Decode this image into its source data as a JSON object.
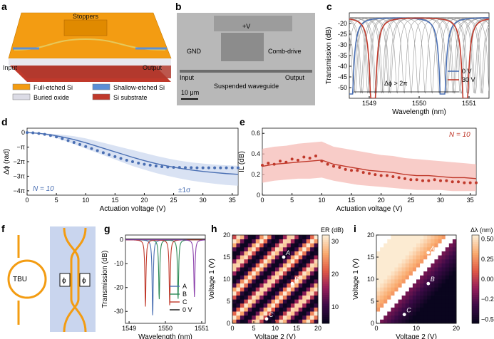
{
  "colors": {
    "blue": "#4a6fb3",
    "red": "#c0392b",
    "red_band": "#f5b7b1",
    "blue_band": "#c9d5ee",
    "orange": "#f39c12",
    "gray": "#9a9a9a",
    "green": "#2e8b57",
    "purple": "#8e44ad"
  },
  "panel_a": {
    "letter": "a",
    "device_labels": {
      "stoppers": "Stoppers",
      "input": "Input",
      "output": "Output"
    },
    "legend": [
      {
        "label": "Full-etched Si",
        "color": "#f39c12"
      },
      {
        "label": "Shallow-etched Si",
        "color": "#5b8fd6"
      },
      {
        "label": "Buried oxide",
        "color": "#dcdce6"
      },
      {
        "label": "Si substrate",
        "color": "#c0392b"
      }
    ]
  },
  "panel_b": {
    "letter": "b",
    "labels": {
      "v": "+V",
      "gnd": "GND",
      "comb": "Comb-drive",
      "input": "Input",
      "output": "Output",
      "suspended": "Suspended waveguide",
      "scale": "10 μm"
    }
  },
  "panel_f": {
    "letter": "f",
    "labels": {
      "tbu": "TBU",
      "phi1": "ϕ",
      "phi2": "ϕ"
    }
  },
  "chart_data": [
    {
      "panel": "c",
      "type": "line",
      "xlabel": "Wavelength (nm)",
      "ylabel": "Transmission (dB)",
      "xlim": [
        1548.6,
        1551.4
      ],
      "ylim": [
        -55,
        -15
      ],
      "xticks": [
        1549,
        1550,
        1551
      ],
      "yticks": [
        -50,
        -45,
        -40,
        -35,
        -30,
        -25,
        -20
      ],
      "annotation": "Δϕ > 2π",
      "series": [
        {
          "name": "0 V",
          "color": "#4a6fb3",
          "dips": [
            1548.62,
            1550.47
          ],
          "depth": -53
        },
        {
          "name": "30 V",
          "color": "#c0392b",
          "dips": [
            1549.08,
            1550.92
          ],
          "depth": -55
        }
      ],
      "gray_dip_positions": [
        1548.72,
        1548.86,
        1549.0,
        1549.14,
        1549.28,
        1549.42,
        1549.56,
        1549.7,
        1549.84,
        1549.98,
        1550.12,
        1550.26,
        1550.4,
        1550.54,
        1550.68,
        1550.82,
        1550.96,
        1551.1,
        1551.24
      ],
      "floor": -17,
      "fsr_nm": 1.85
    },
    {
      "panel": "d",
      "type": "line",
      "xlabel": "Actuation voltage (V)",
      "ylabel": "Δϕ (rad)",
      "xlim": [
        0,
        36
      ],
      "ylim": [
        -4.3,
        0.3
      ],
      "xticks": [
        0,
        5,
        10,
        15,
        20,
        25,
        30,
        35
      ],
      "yticks": [
        0,
        -1,
        -2,
        -3,
        -4
      ],
      "ytick_labels": [
        "0",
        "−π",
        "−2π",
        "−3π",
        "−4π"
      ],
      "n_label": "N = 10",
      "band_label": "±1σ",
      "mean_x": [
        0,
        2,
        4,
        6,
        8,
        10,
        12,
        14,
        16,
        18,
        20,
        22,
        24,
        26,
        28,
        30,
        32,
        34,
        36
      ],
      "mean_y": [
        0,
        -0.05,
        -0.15,
        -0.3,
        -0.48,
        -0.7,
        -0.95,
        -1.2,
        -1.45,
        -1.7,
        -1.93,
        -2.13,
        -2.3,
        -2.45,
        -2.57,
        -2.67,
        -2.75,
        -2.82,
        -2.87
      ],
      "band_lower": [
        0,
        -0.08,
        -0.25,
        -0.5,
        -0.8,
        -1.1,
        -1.4,
        -1.7,
        -2.0,
        -2.3,
        -2.55,
        -2.78,
        -2.98,
        -3.15,
        -3.3,
        -3.42,
        -3.52,
        -3.6,
        -3.65
      ],
      "band_upper": [
        0,
        -0.03,
        -0.08,
        -0.15,
        -0.25,
        -0.4,
        -0.6,
        -0.8,
        -1.0,
        -1.2,
        -1.4,
        -1.6,
        -1.78,
        -1.93,
        -2.05,
        -2.13,
        -2.2,
        -2.25,
        -2.28
      ],
      "points_x": [
        0,
        1,
        2,
        3,
        4,
        5,
        6,
        7,
        8,
        9,
        10,
        11,
        12,
        13,
        14,
        15,
        16,
        17,
        18,
        19,
        20,
        21,
        22,
        23,
        24,
        25,
        26,
        27,
        28,
        29,
        30,
        31,
        32,
        33,
        34,
        35,
        36
      ],
      "points_y": [
        0,
        -0.02,
        -0.06,
        -0.12,
        -0.2,
        -0.3,
        -0.42,
        -0.55,
        -0.68,
        -0.82,
        -0.96,
        -1.1,
        -1.24,
        -1.38,
        -1.52,
        -1.65,
        -1.78,
        -1.9,
        -2.0,
        -2.1,
        -2.18,
        -2.24,
        -2.3,
        -2.34,
        -2.37,
        -2.39,
        -2.4,
        -2.41,
        -2.41,
        -2.42,
        -2.42,
        -2.42,
        -2.42,
        -2.42,
        -2.42,
        -2.42,
        -2.42
      ]
    },
    {
      "panel": "e",
      "type": "line",
      "xlabel": "Actuation voltage (V)",
      "ylabel": "IL (dB)",
      "xlim": [
        0,
        36
      ],
      "ylim": [
        0,
        0.65
      ],
      "xticks": [
        0,
        5,
        10,
        15,
        20,
        25,
        30,
        35
      ],
      "yticks": [
        0,
        0.2,
        0.4,
        0.6
      ],
      "n_label": "N = 10",
      "mean_x": [
        0,
        2,
        4,
        6,
        8,
        10,
        12,
        14,
        16,
        18,
        20,
        22,
        24,
        26,
        28,
        30,
        32,
        34,
        36
      ],
      "mean_y": [
        0.28,
        0.3,
        0.31,
        0.32,
        0.33,
        0.34,
        0.3,
        0.28,
        0.26,
        0.24,
        0.23,
        0.22,
        0.2,
        0.19,
        0.19,
        0.18,
        0.17,
        0.17,
        0.16
      ],
      "band_lower": [
        0.12,
        0.14,
        0.15,
        0.16,
        0.16,
        0.17,
        0.14,
        0.12,
        0.1,
        0.09,
        0.08,
        0.07,
        0.06,
        0.05,
        0.05,
        0.05,
        0.04,
        0.04,
        0.04
      ],
      "band_upper": [
        0.45,
        0.47,
        0.48,
        0.5,
        0.51,
        0.52,
        0.47,
        0.45,
        0.43,
        0.41,
        0.39,
        0.38,
        0.36,
        0.35,
        0.34,
        0.33,
        0.32,
        0.31,
        0.3
      ],
      "points_x": [
        0,
        1,
        2,
        3,
        4,
        5,
        6,
        7,
        8,
        9,
        10,
        11,
        12,
        13,
        14,
        15,
        16,
        17,
        18,
        19,
        20,
        21,
        22,
        23,
        24,
        25,
        26,
        27,
        28,
        29,
        30,
        31,
        32,
        33,
        34,
        35,
        36
      ],
      "points_y": [
        0.29,
        0.31,
        0.3,
        0.33,
        0.32,
        0.35,
        0.34,
        0.37,
        0.36,
        0.38,
        0.33,
        0.3,
        0.28,
        0.27,
        0.25,
        0.24,
        0.24,
        0.22,
        0.21,
        0.2,
        0.19,
        0.19,
        0.18,
        0.17,
        0.16,
        0.15,
        0.15,
        0.14,
        0.14,
        0.15,
        0.14,
        0.14,
        0.13,
        0.13,
        0.12,
        0.12,
        0.12
      ]
    },
    {
      "panel": "g",
      "type": "line",
      "xlabel": "Wavelength (nm)",
      "ylabel": "Transmission (dB)",
      "xlim": [
        1548.9,
        1551.1
      ],
      "ylim": [
        -35,
        2
      ],
      "xticks": [
        1549,
        1550,
        1551
      ],
      "yticks": [
        0,
        -10,
        -20,
        -30
      ],
      "series": [
        {
          "name": "A",
          "color": "#4a6fb3",
          "dips": [
            1549.65
          ],
          "depth": -32
        },
        {
          "name": "B",
          "color": "#2e8b57",
          "dips": [
            1549.83,
            1550.35
          ],
          "depth": -25
        },
        {
          "name": "C",
          "color": "#c0392b",
          "dips": [
            1549.45,
            1550.12
          ],
          "depth": -28
        },
        {
          "name": "0 V",
          "color": "#111111",
          "dips": [],
          "depth": 0
        },
        {
          "name": "",
          "color": "#8e44ad",
          "dips": [
            1550.8
          ],
          "depth": -24
        }
      ],
      "legend": [
        "A",
        "B",
        "C",
        "0 V"
      ]
    },
    {
      "panel": "h",
      "type": "heatmap",
      "xlabel": "Voltage 2 (V)",
      "ylabel": "Voltage 1 (V)",
      "xlim": [
        0,
        20
      ],
      "ylim": [
        0,
        20
      ],
      "xticks": [
        0,
        5,
        10,
        15,
        20
      ],
      "yticks": [
        0,
        5,
        10,
        15,
        20
      ],
      "colorbar_label": "ER (dB)",
      "colorbar_ticks": [
        10,
        20,
        30
      ],
      "clim": [
        5,
        32
      ],
      "points": [
        {
          "label": "A",
          "x": 12,
          "y": 15
        },
        {
          "label": "B",
          "x": 14,
          "y": 9
        },
        {
          "label": "C",
          "x": 8,
          "y": 1
        }
      ]
    },
    {
      "panel": "i",
      "type": "heatmap",
      "xlabel": "Voltage 2 (V)",
      "ylabel": "Voltage 1 (V)",
      "xlim": [
        0,
        20
      ],
      "ylim": [
        0,
        20
      ],
      "xticks": [
        0,
        10,
        20
      ],
      "yticks": [
        0,
        5,
        10,
        15,
        20
      ],
      "colorbar_label": "Δλ (nm)",
      "colorbar_ticks": [
        0.5,
        0.25,
        0.0,
        -0.25,
        -0.5
      ],
      "colorbar_tick_labels": [
        "0.50",
        "0.25",
        "0.00",
        "−0.25",
        "−0.50"
      ],
      "clim": [
        -0.55,
        0.55
      ],
      "points": [
        {
          "label": "A",
          "x": 13,
          "y": 16
        },
        {
          "label": "B",
          "x": 13,
          "y": 9
        },
        {
          "label": "C",
          "x": 7,
          "y": 2
        }
      ]
    }
  ]
}
